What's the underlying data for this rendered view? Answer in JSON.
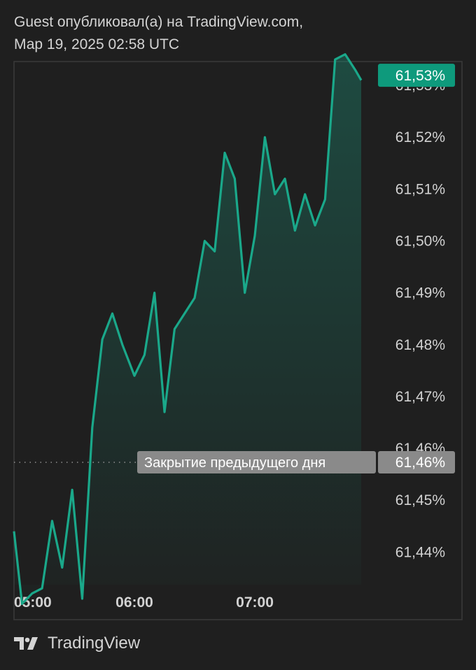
{
  "header": {
    "publisher_line": "Guest опубликовал(а) на TradingView.com,",
    "date_line": "Мар 19, 2025 02:58 UTC"
  },
  "footer": {
    "brand": "TradingView"
  },
  "colors": {
    "background": "#1f1f1f",
    "line": "#1aa88a",
    "last_price_badge": "#0e9a7c",
    "prev_close_badge": "#8a8a8a",
    "frame": "#3a3a3a"
  },
  "chart_data": {
    "type": "area",
    "y_unit": "%",
    "ylim": [
      61.4337,
      61.5346
    ],
    "y_ticks": [
      61.53,
      61.52,
      61.51,
      61.5,
      61.49,
      61.48,
      61.47,
      61.46,
      61.45,
      61.44
    ],
    "y_tick_labels": [
      "61,53%",
      "61,52%",
      "61,51%",
      "61,50%",
      "61,49%",
      "61,48%",
      "61,47%",
      "61,46%",
      "61,45%",
      "61,44%"
    ],
    "x_ticks": [
      "05:00",
      "06:00",
      "07:00"
    ],
    "x_tick_times": [
      "05:00",
      "06:00",
      "07:00"
    ],
    "x_range": [
      "05:00",
      "07:53"
    ],
    "x": [
      "05:00",
      "05:04",
      "05:09",
      "05:14",
      "05:19",
      "05:24",
      "05:29",
      "05:34",
      "05:39",
      "05:44",
      "05:49",
      "05:54",
      "06:00",
      "06:05",
      "06:10",
      "06:15",
      "06:20",
      "06:25",
      "06:30",
      "06:35",
      "06:40",
      "06:45",
      "06:50",
      "06:55",
      "07:00",
      "07:05",
      "07:10",
      "07:15",
      "07:20",
      "07:25",
      "07:30",
      "07:35",
      "07:40",
      "07:45",
      "07:50",
      "07:53"
    ],
    "values": [
      61.444,
      61.43,
      61.432,
      61.433,
      61.446,
      61.437,
      61.452,
      61.431,
      61.464,
      61.481,
      61.486,
      61.48,
      61.474,
      61.478,
      61.49,
      61.467,
      61.483,
      61.486,
      61.489,
      61.5,
      61.498,
      61.517,
      61.512,
      61.49,
      61.501,
      61.52,
      61.509,
      61.512,
      61.502,
      61.509,
      61.503,
      61.508,
      61.535,
      61.536,
      61.533,
      61.531
    ],
    "last_price_label": "61,53%",
    "previous_close": 61.4573,
    "previous_close_label": "Закрытие предыдущего дня",
    "previous_close_value_label": "61,46%",
    "grid": false
  }
}
